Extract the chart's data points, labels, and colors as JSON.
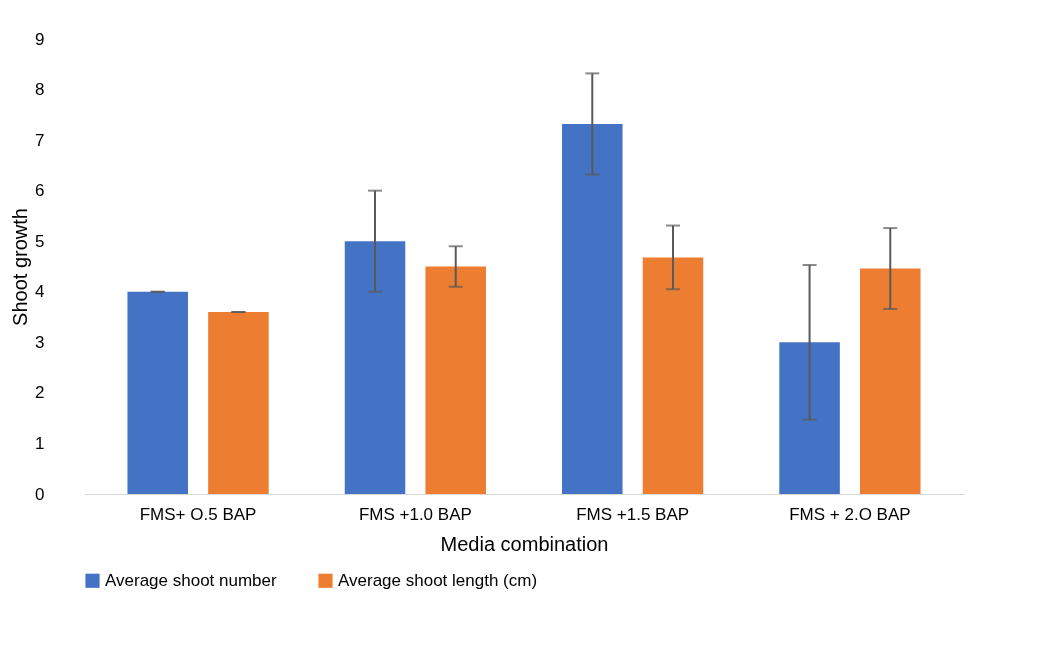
{
  "chart_data": {
    "type": "bar",
    "xlabel": "Media combination",
    "ylabel": "Shoot growth",
    "categories": [
      "FMS+ O.5 BAP",
      "FMS +1.0 BAP",
      "FMS +1.5 BAP",
      "FMS + 2.O BAP"
    ],
    "series": [
      {
        "name": "Average shoot number",
        "color": "#4472c4",
        "values": [
          4.0,
          5.0,
          7.32,
          3.0
        ],
        "errors": [
          0,
          1.0,
          1.0,
          1.53
        ]
      },
      {
        "name": "Average shoot length (cm)",
        "color": "#ed7d31",
        "values": [
          3.6,
          4.5,
          4.68,
          4.46
        ],
        "errors": [
          0,
          0.4,
          0.63,
          0.8
        ]
      }
    ],
    "ylim": [
      0,
      9
    ],
    "yticks": [
      0,
      1,
      2,
      3,
      4,
      5,
      6,
      7,
      8,
      9
    ],
    "grid": false,
    "legend": "bottom"
  }
}
